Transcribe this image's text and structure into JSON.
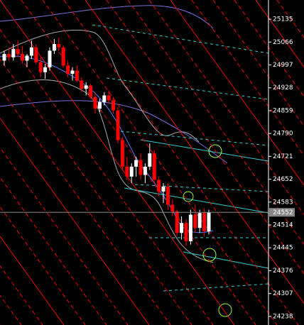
{
  "chart_data": {
    "type": "candlestick",
    "up_color": "#ffffff",
    "down_color": "#ff0000",
    "open": [
      25010,
      25030,
      25020,
      25045,
      25030,
      25010,
      25025,
      25050,
      25005,
      24975,
      24990,
      25040,
      25060,
      25050,
      24995,
      24970,
      24980,
      24950,
      24925,
      24935,
      24900,
      24865,
      24885,
      24905,
      24890,
      24860,
      24770,
      24690,
      24660,
      24690,
      24710,
      24665,
      24690,
      24730,
      24650,
      24615,
      24630,
      24575,
      24555,
      24490,
      24520,
      24465,
      24545,
      24505,
      24550,
      24495
    ],
    "high": [
      25040,
      25050,
      25060,
      25070,
      25055,
      25030,
      25070,
      25060,
      25020,
      25000,
      25050,
      25075,
      25080,
      25055,
      25010,
      24990,
      24995,
      24960,
      24945,
      24940,
      24915,
      24895,
      24915,
      24920,
      24900,
      24870,
      24780,
      24720,
      24700,
      24720,
      24730,
      24700,
      24760,
      24740,
      24660,
      24640,
      24640,
      24590,
      24560,
      24540,
      24530,
      24560,
      24575,
      24560,
      24565,
      24560
    ],
    "low": [
      24995,
      25010,
      25010,
      25020,
      25000,
      24990,
      25015,
      25000,
      24960,
      24955,
      24980,
      25030,
      25040,
      24990,
      24960,
      24950,
      24945,
      24915,
      24905,
      24895,
      24850,
      24855,
      24875,
      24880,
      24850,
      24760,
      24680,
      24650,
      24640,
      24660,
      24650,
      24640,
      24680,
      24640,
      24600,
      24580,
      24560,
      24540,
      24480,
      24470,
      24450,
      24455,
      24490,
      24490,
      24480,
      24485
    ],
    "close": [
      25030,
      25020,
      25045,
      25030,
      25010,
      25025,
      25050,
      25005,
      24975,
      24990,
      25040,
      25060,
      25050,
      24995,
      24970,
      24980,
      24950,
      24925,
      24935,
      24900,
      24865,
      24885,
      24905,
      24890,
      24860,
      24770,
      24690,
      24660,
      24690,
      24710,
      24665,
      24690,
      24730,
      24650,
      24615,
      24630,
      24575,
      24555,
      24490,
      24520,
      24465,
      24545,
      24505,
      24550,
      24495,
      24552
    ],
    "current_price": 24552,
    "ylim": [
      24212,
      25193
    ],
    "yticks": [
      25135,
      25066,
      24997,
      24928,
      24859,
      24790,
      24721,
      24652,
      24583,
      24514,
      24445,
      24376,
      24307,
      24238
    ]
  }
}
